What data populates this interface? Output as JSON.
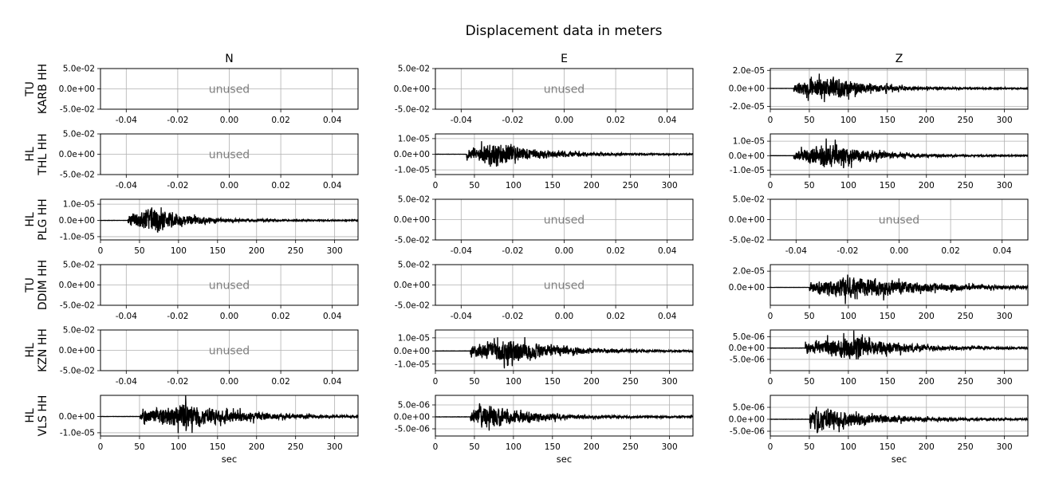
{
  "title": "Displacement data in meters",
  "columns": [
    "N",
    "E",
    "Z"
  ],
  "x_label": "sec",
  "unused_label": "unused",
  "colors": {
    "trace": "#000000",
    "grid": "#b0b0b0",
    "unused_text": "#808080"
  },
  "chart_data": [
    {
      "type": "line",
      "station": "TU\nKARB HH",
      "component": "N",
      "unused": true,
      "xticks": [
        "-0.04",
        "-0.02",
        "0.00",
        "0.02",
        "0.04"
      ],
      "yticks": [
        "5.0e-02",
        "0.0e+00",
        "-5.0e-02"
      ],
      "xlim": [
        -0.05,
        0.05
      ],
      "ylim": [
        -0.05,
        0.05
      ]
    },
    {
      "type": "line",
      "station": "TU\nKARB HH",
      "component": "E",
      "unused": true,
      "xticks": [
        "-0.04",
        "-0.02",
        "0.00",
        "0.02",
        "0.04"
      ],
      "yticks": [
        "5.0e-02",
        "0.0e+00",
        "-5.0e-02"
      ],
      "xlim": [
        -0.05,
        0.05
      ],
      "ylim": [
        -0.05,
        0.05
      ]
    },
    {
      "type": "line",
      "station": "TU\nKARB HH",
      "component": "Z",
      "unused": false,
      "xticks": [
        "0",
        "50",
        "100",
        "150",
        "200",
        "250",
        "300"
      ],
      "yticks": [
        "2.0e-05",
        "0.0e+00",
        "-2.0e-05"
      ],
      "xlim": [
        0,
        330
      ],
      "ylim": [
        -2.3e-05,
        2.2e-05
      ],
      "ytick_values": [
        2e-05,
        0,
        -2e-05
      ],
      "onset": 30,
      "peak_time": 80,
      "peak_amp": 2.1e-05,
      "decay": 45,
      "end_amp": 8e-07,
      "seed": 11
    },
    {
      "type": "line",
      "station": "HL\nTHL HH",
      "component": "N",
      "unused": true,
      "xticks": [
        "-0.04",
        "-0.02",
        "0.00",
        "0.02",
        "0.04"
      ],
      "yticks": [
        "5.0e-02",
        "0.0e+00",
        "-5.0e-02"
      ],
      "xlim": [
        -0.05,
        0.05
      ],
      "ylim": [
        -0.05,
        0.05
      ]
    },
    {
      "type": "line",
      "station": "HL\nTHL HH",
      "component": "E",
      "unused": false,
      "xticks": [
        "0",
        "50",
        "100",
        "150",
        "200",
        "250",
        "300"
      ],
      "yticks": [
        "1.0e-05",
        "0.0e+00",
        "-1.0e-05"
      ],
      "xlim": [
        0,
        330
      ],
      "ylim": [
        -1.3e-05,
        1.3e-05
      ],
      "ytick_values": [
        1e-05,
        0,
        -1e-05
      ],
      "onset": 40,
      "peak_time": 80,
      "peak_amp": 1.2e-05,
      "decay": 50,
      "end_amp": 5e-07,
      "seed": 23
    },
    {
      "type": "line",
      "station": "HL\nTHL HH",
      "component": "Z",
      "unused": false,
      "xticks": [
        "0",
        "50",
        "100",
        "150",
        "200",
        "250",
        "300"
      ],
      "yticks": [
        "1.0e-05",
        "0.0e+00",
        "-1.0e-05"
      ],
      "xlim": [
        0,
        330
      ],
      "ylim": [
        -1.3e-05,
        1.5e-05
      ],
      "ytick_values": [
        1e-05,
        0,
        -1e-05
      ],
      "onset": 30,
      "peak_time": 78,
      "peak_amp": 1.3e-05,
      "decay": 50,
      "end_amp": 5e-07,
      "seed": 37
    },
    {
      "type": "line",
      "station": "HL\nPLG HH",
      "component": "N",
      "unused": false,
      "xticks": [
        "0",
        "50",
        "100",
        "150",
        "200",
        "250",
        "300"
      ],
      "yticks": [
        "1.0e-05",
        "0.0e+00",
        "-1.0e-05"
      ],
      "xlim": [
        0,
        330
      ],
      "ylim": [
        -1.2e-05,
        1.3e-05
      ],
      "ytick_values": [
        1e-05,
        0,
        -1e-05
      ],
      "onset": 35,
      "peak_time": 65,
      "peak_amp": 1.2e-05,
      "decay": 45,
      "end_amp": 5e-07,
      "seed": 41
    },
    {
      "type": "line",
      "station": "HL\nPLG HH",
      "component": "E",
      "unused": true,
      "xticks": [
        "-0.04",
        "-0.02",
        "0.00",
        "0.02",
        "0.04"
      ],
      "yticks": [
        "5.0e-02",
        "0.0e+00",
        "-5.0e-02"
      ],
      "xlim": [
        -0.05,
        0.05
      ],
      "ylim": [
        -0.05,
        0.05
      ]
    },
    {
      "type": "line",
      "station": "HL\nPLG HH",
      "component": "Z",
      "unused": true,
      "xticks": [
        "-0.04",
        "-0.02",
        "0.00",
        "0.02",
        "0.04"
      ],
      "yticks": [
        "5.0e-02",
        "0.0e+00",
        "-5.0e-02"
      ],
      "xlim": [
        -0.05,
        0.05
      ],
      "ylim": [
        -0.05,
        0.05
      ]
    },
    {
      "type": "line",
      "station": "TU\nDDIM HH",
      "component": "N",
      "unused": true,
      "xticks": [
        "-0.04",
        "-0.02",
        "0.00",
        "0.02",
        "0.04"
      ],
      "yticks": [
        "5.0e-02",
        "0.0e+00",
        "-5.0e-02"
      ],
      "xlim": [
        -0.05,
        0.05
      ],
      "ylim": [
        -0.05,
        0.05
      ]
    },
    {
      "type": "line",
      "station": "TU\nDDIM HH",
      "component": "E",
      "unused": true,
      "xticks": [
        "-0.04",
        "-0.02",
        "0.00",
        "0.02",
        "0.04"
      ],
      "yticks": [
        "5.0e-02",
        "0.0e+00",
        "-5.0e-02"
      ],
      "xlim": [
        -0.05,
        0.05
      ],
      "ylim": [
        -0.05,
        0.05
      ]
    },
    {
      "type": "line",
      "station": "TU\nDDIM HH",
      "component": "Z",
      "unused": false,
      "xticks": [
        "0",
        "50",
        "100",
        "150",
        "200",
        "250",
        "300"
      ],
      "yticks": [
        "2.0e-05",
        "0.0e+00"
      ],
      "xlim": [
        0,
        330
      ],
      "ylim": [
        -2.2e-05,
        2.8e-05
      ],
      "ytick_values": [
        2e-05,
        0
      ],
      "onset": 50,
      "peak_time": 110,
      "peak_amp": 2.2e-05,
      "decay": 90,
      "end_amp": 1e-06,
      "seed": 53
    },
    {
      "type": "line",
      "station": "HL\nKZN HH",
      "component": "N",
      "unused": true,
      "xticks": [
        "-0.04",
        "-0.02",
        "0.00",
        "0.02",
        "0.04"
      ],
      "yticks": [
        "5.0e-02",
        "0.0e+00",
        "-5.0e-02"
      ],
      "xlim": [
        -0.05,
        0.05
      ],
      "ylim": [
        -0.05,
        0.05
      ]
    },
    {
      "type": "line",
      "station": "HL\nKZN HH",
      "component": "E",
      "unused": false,
      "xticks": [
        "0",
        "50",
        "100",
        "150",
        "200",
        "250",
        "300"
      ],
      "yticks": [
        "1.0e-05",
        "0.0e+00",
        "-1.0e-05"
      ],
      "xlim": [
        0,
        330
      ],
      "ylim": [
        -1.5e-05,
        1.6e-05
      ],
      "ytick_values": [
        1e-05,
        0,
        -1e-05
      ],
      "onset": 45,
      "peak_time": 98,
      "peak_amp": 1.4e-05,
      "decay": 60,
      "end_amp": 6e-07,
      "seed": 67
    },
    {
      "type": "line",
      "station": "HL\nKZN HH",
      "component": "Z",
      "unused": false,
      "xticks": [
        "0",
        "50",
        "100",
        "150",
        "200",
        "250",
        "300"
      ],
      "yticks": [
        "5.0e-06",
        "0.0e+00",
        "-5.0e-06"
      ],
      "xlim": [
        0,
        330
      ],
      "ylim": [
        -1e-05,
        8e-06
      ],
      "ytick_values": [
        5e-06,
        0,
        -5e-06
      ],
      "onset": 45,
      "peak_time": 105,
      "peak_amp": 8e-06,
      "decay": 60,
      "end_amp": 5e-07,
      "seed": 79
    },
    {
      "type": "line",
      "station": "HL\nVLS HH",
      "component": "N",
      "unused": false,
      "xticks": [
        "0",
        "50",
        "100",
        "150",
        "200",
        "250",
        "300"
      ],
      "yticks": [
        "0.0e+00",
        "-1.0e-05"
      ],
      "xlim": [
        0,
        330
      ],
      "ylim": [
        -1.2e-05,
        1.3e-05
      ],
      "ytick_values": [
        0,
        -1e-05
      ],
      "onset": 50,
      "peak_time": 110,
      "peak_amp": 1.2e-05,
      "decay": 70,
      "end_amp": 5e-07,
      "seed": 83
    },
    {
      "type": "line",
      "station": "HL\nVLS HH",
      "component": "E",
      "unused": false,
      "xticks": [
        "0",
        "50",
        "100",
        "150",
        "200",
        "250",
        "300"
      ],
      "yticks": [
        "5.0e-06",
        "0.0e+00",
        "-5.0e-06"
      ],
      "xlim": [
        0,
        330
      ],
      "ylim": [
        -8e-06,
        9e-06
      ],
      "ytick_values": [
        5e-06,
        0,
        -5e-06
      ],
      "onset": 45,
      "peak_time": 60,
      "peak_amp": 8e-06,
      "decay": 60,
      "end_amp": 4e-07,
      "seed": 97
    },
    {
      "type": "line",
      "station": "HL\nVLS HH",
      "component": "Z",
      "unused": false,
      "xticks": [
        "0",
        "50",
        "100",
        "150",
        "200",
        "250",
        "300"
      ],
      "yticks": [
        "5.0e-06",
        "0.0e+00",
        "-5.0e-06"
      ],
      "xlim": [
        0,
        330
      ],
      "ylim": [
        -7e-06,
        1e-05
      ],
      "ytick_values": [
        5e-06,
        0,
        -5e-06
      ],
      "onset": 50,
      "peak_time": 60,
      "peak_amp": 9e-06,
      "decay": 60,
      "end_amp": 4e-07,
      "seed": 101
    }
  ]
}
